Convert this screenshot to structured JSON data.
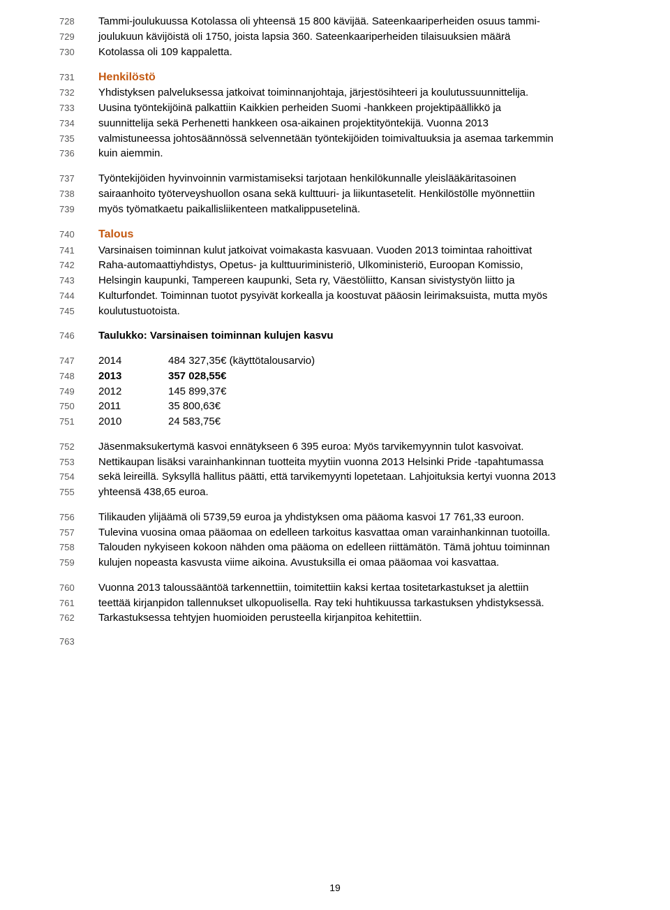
{
  "colors": {
    "heading": "#c45911",
    "text": "#000000",
    "lineNumber": "#595959",
    "background": "#ffffff"
  },
  "p1": {
    "l728": {
      "n": "728",
      "t": "Tammi-joulukuussa Kotolassa oli yhteensä 15 800 kävijää. Sateenkaariperheiden osuus tammi-"
    },
    "l729": {
      "n": "729",
      "t": "joulukuun kävijöistä oli 1750, joista lapsia 360. Sateenkaariperheiden tilaisuuksien määrä"
    },
    "l730": {
      "n": "730",
      "t": "Kotolassa oli 109 kappaletta."
    }
  },
  "h1": {
    "n": "731",
    "t": "Henkilöstö"
  },
  "p2": {
    "l732": {
      "n": "732",
      "t": "Yhdistyksen palveluksessa jatkoivat toiminnanjohtaja, järjestösihteeri ja koulutussuunnittelija."
    },
    "l733": {
      "n": "733",
      "t": "Uusina työntekijöinä palkattiin Kaikkien perheiden Suomi -hankkeen projektipäällikkö ja"
    },
    "l734": {
      "n": "734",
      "t": "suunnittelija sekä Perhenetti hankkeen osa-aikainen projektityöntekijä. Vuonna 2013"
    },
    "l735": {
      "n": "735",
      "t": "valmistuneessa johtosäännössä selvennetään työntekijöiden toimivaltuuksia ja asemaa tarkemmin"
    },
    "l736": {
      "n": "736",
      "t": "kuin aiemmin."
    }
  },
  "p3": {
    "l737": {
      "n": "737",
      "t": "Työntekijöiden hyvinvoinnin varmistamiseksi tarjotaan henkilökunnalle yleislääkäritasoinen"
    },
    "l738": {
      "n": "738",
      "t": "sairaanhoito työterveyshuollon osana sekä kulttuuri- ja liikuntasetelit. Henkilöstölle myönnettiin"
    },
    "l739": {
      "n": "739",
      "t": "myös työmatkaetu paikallisliikenteen matkalippusetelinä."
    }
  },
  "h2": {
    "n": "740",
    "t": "Talous"
  },
  "p4": {
    "l741": {
      "n": "741",
      "t": "Varsinaisen toiminnan kulut jatkoivat voimakasta kasvuaan. Vuoden 2013 toimintaa rahoittivat"
    },
    "l742": {
      "n": "742",
      "t": "Raha-automaattiyhdistys, Opetus- ja kulttuuriministeriö, Ulkoministeriö, Euroopan Komissio,"
    },
    "l743": {
      "n": "743",
      "t": "Helsingin kaupunki, Tampereen kaupunki, Seta ry, Väestöliitto, Kansan sivistystyön liitto ja"
    },
    "l744": {
      "n": "744",
      "t": "Kulturfondet. Toiminnan tuotot pysyivät korkealla ja koostuvat pääosin leirimaksuista, mutta myös"
    },
    "l745": {
      "n": "745",
      "t": "koulutustuotoista."
    }
  },
  "h3": {
    "n": "746",
    "t": "Taulukko: Varsinaisen toiminnan kulujen kasvu"
  },
  "tbl": {
    "r1": {
      "n": "747",
      "year": "2014",
      "val": "484 327,35€ (käyttötalousarvio)",
      "bold": false
    },
    "r2": {
      "n": "748",
      "year": "2013",
      "val": "357 028,55€",
      "bold": true
    },
    "r3": {
      "n": "749",
      "year": "2012",
      "val": "145 899,37€",
      "bold": false
    },
    "r4": {
      "n": "750",
      "year": "2011",
      "val": "35 800,63€",
      "bold": false
    },
    "r5": {
      "n": "751",
      "year": "2010",
      "val": "24 583,75€",
      "bold": false
    }
  },
  "p5": {
    "l752": {
      "n": "752",
      "t": "Jäsenmaksukertymä kasvoi ennätykseen 6 395 euroa: Myös tarvikemyynnin tulot kasvoivat."
    },
    "l753": {
      "n": "753",
      "t": "Nettikaupan lisäksi varainhankinnan tuotteita myytiin vuonna 2013 Helsinki Pride -tapahtumassa"
    },
    "l754": {
      "n": "754",
      "t": "sekä leireillä. Syksyllä hallitus päätti, että tarvikemyynti lopetetaan. Lahjoituksia kertyi vuonna 2013"
    },
    "l755": {
      "n": "755",
      "t": "yhteensä 438,65 euroa."
    }
  },
  "p6": {
    "l756": {
      "n": "756",
      "t": "Tilikauden ylijäämä oli 5739,59 euroa ja yhdistyksen oma pääoma kasvoi 17 761,33 euroon."
    },
    "l757": {
      "n": "757",
      "t": "Tulevina vuosina omaa pääomaa on edelleen tarkoitus kasvattaa oman varainhankinnan tuotoilla."
    },
    "l758": {
      "n": "758",
      "t": "Talouden nykyiseen kokoon nähden oma pääoma on edelleen riittämätön. Tämä johtuu toiminnan"
    },
    "l759": {
      "n": "759",
      "t": "kulujen nopeasta kasvusta viime aikoina. Avustuksilla ei omaa pääomaa voi kasvattaa."
    }
  },
  "p7": {
    "l760": {
      "n": "760",
      "t": "Vuonna 2013 taloussääntöä tarkennettiin, toimitettiin kaksi kertaa tositetarkastukset ja alettiin"
    },
    "l761": {
      "n": "761",
      "t": "teettää kirjanpidon tallennukset ulkopuolisella. Ray teki huhtikuussa tarkastuksen yhdistyksessä."
    },
    "l762": {
      "n": "762",
      "t": "Tarkastuksessa tehtyjen huomioiden perusteella kirjanpitoa kehitettiin."
    }
  },
  "l763": {
    "n": "763",
    "t": ""
  },
  "pageNumber": "19"
}
